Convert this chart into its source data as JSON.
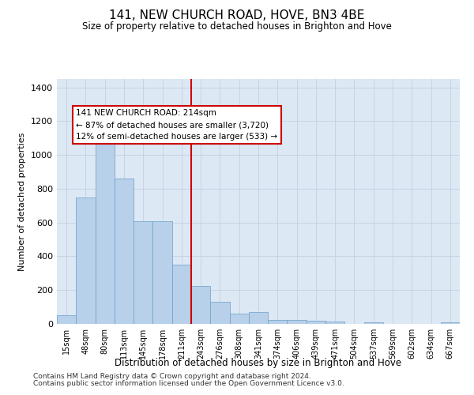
{
  "title": "141, NEW CHURCH ROAD, HOVE, BN3 4BE",
  "subtitle": "Size of property relative to detached houses in Brighton and Hove",
  "xlabel": "Distribution of detached houses by size in Brighton and Hove",
  "ylabel": "Number of detached properties",
  "footer1": "Contains HM Land Registry data © Crown copyright and database right 2024.",
  "footer2": "Contains public sector information licensed under the Open Government Licence v3.0.",
  "annotation_line1": "141 NEW CHURCH ROAD: 214sqm",
  "annotation_line2": "← 87% of detached houses are smaller (3,720)",
  "annotation_line3": "12% of semi-detached houses are larger (533) →",
  "categories": [
    "15sqm",
    "48sqm",
    "80sqm",
    "113sqm",
    "145sqm",
    "178sqm",
    "211sqm",
    "243sqm",
    "276sqm",
    "308sqm",
    "341sqm",
    "374sqm",
    "406sqm",
    "439sqm",
    "471sqm",
    "504sqm",
    "537sqm",
    "569sqm",
    "602sqm",
    "634sqm",
    "667sqm"
  ],
  "values": [
    50,
    750,
    1100,
    860,
    610,
    610,
    350,
    225,
    130,
    60,
    70,
    25,
    25,
    20,
    15,
    0,
    10,
    0,
    0,
    0,
    10
  ],
  "bar_color": "#b8d0ea",
  "bar_edge_color": "#6a9fc8",
  "vline_color": "#cc0000",
  "vline_x_index": 6.5,
  "annotation_box_color": "#cc0000",
  "grid_color": "#c8d4e4",
  "background_color": "#dce8f4",
  "ylim": [
    0,
    1450
  ],
  "yticks": [
    0,
    200,
    400,
    600,
    800,
    1000,
    1200,
    1400
  ]
}
